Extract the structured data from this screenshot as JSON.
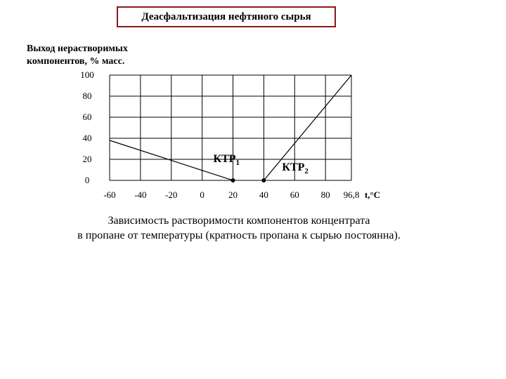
{
  "header": {
    "title": "Деасфальтизация нефтяного сырья"
  },
  "caption": {
    "line1": "Зависимость растворимости компонентов концентрата",
    "line2": "в пропане от температуры (кратность пропана к сырью постоянна)."
  },
  "chart_data": {
    "type": "line",
    "title": "Деасфальтизация нефтяного сырья",
    "ylabel_lines": [
      "Выход нерастворимых",
      "компонентов, % масс."
    ],
    "xlabel": "t,°C",
    "x_ticks": [
      "-60",
      "-40",
      "-20",
      "0",
      "20",
      "40",
      "60",
      "80",
      "96,8"
    ],
    "y_ticks": [
      "0",
      "20",
      "40",
      "60",
      "80",
      "100"
    ],
    "xlim": [
      -60,
      96.8
    ],
    "ylim": [
      0,
      100
    ],
    "grid": true,
    "series": [
      {
        "points": [
          [
            -60,
            38
          ],
          [
            20,
            0
          ]
        ],
        "color": "#000000"
      },
      {
        "points": [
          [
            40,
            0
          ],
          [
            96.8,
            100
          ]
        ],
        "color": "#000000"
      }
    ],
    "critical_points": [
      {
        "label": "КТР",
        "sub": "1",
        "x": 20,
        "y": 0
      },
      {
        "label": "КТР",
        "sub": "2",
        "x": 40,
        "y": 0
      }
    ]
  }
}
